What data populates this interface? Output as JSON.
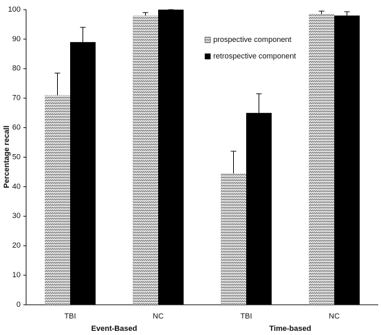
{
  "chart_data": {
    "type": "bar",
    "y_label": "Percentage recall",
    "categories": [
      "TBI",
      "NC",
      "TBI",
      "NC"
    ],
    "groups": [
      "Event-Based",
      "Time-based"
    ],
    "series": [
      {
        "name": "prospective component",
        "color": "#d0d0d0",
        "pattern": "zigzag",
        "values": [
          71,
          98,
          44.5,
          98.5
        ],
        "errors": [
          7.5,
          1,
          7.5,
          1
        ]
      },
      {
        "name": "retrospective component",
        "color": "#000000",
        "values": [
          89,
          100,
          65,
          98
        ],
        "errors": [
          5,
          0,
          6.5,
          1.3
        ]
      }
    ],
    "ylim": [
      0,
      100
    ],
    "yticks": [
      0,
      10,
      20,
      30,
      40,
      50,
      60,
      70,
      80,
      90,
      100
    ],
    "grid": false,
    "legend": "top-right"
  }
}
